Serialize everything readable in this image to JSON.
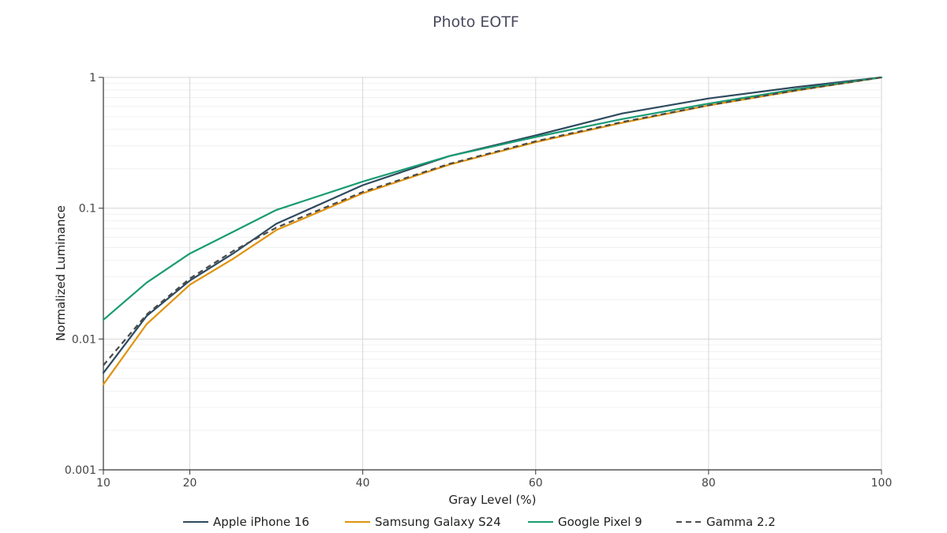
{
  "chart_data": {
    "type": "line",
    "title": "Photo EOTF",
    "xlabel": "Gray Level (%)",
    "ylabel": "Normalized Luminance",
    "xlim": [
      10,
      100
    ],
    "ylim": [
      0.001,
      1
    ],
    "yscale": "log",
    "grid": true,
    "legend_position": "bottom",
    "x_ticks": [
      10,
      20,
      40,
      60,
      80,
      100
    ],
    "y_ticks": [
      {
        "value": 0.001,
        "label": "0.001"
      },
      {
        "value": 0.01,
        "label": "0.01"
      },
      {
        "value": 0.1,
        "label": "0.1"
      },
      {
        "value": 1,
        "label": "1"
      }
    ],
    "series": [
      {
        "name": "Apple iPhone 16",
        "color": "#2e4a5f",
        "dash": "solid",
        "x": [
          10,
          15,
          20,
          25,
          30,
          40,
          50,
          60,
          70,
          80,
          90,
          100
        ],
        "y": [
          0.0055,
          0.015,
          0.028,
          0.045,
          0.076,
          0.15,
          0.25,
          0.36,
          0.53,
          0.69,
          0.84,
          1.0
        ]
      },
      {
        "name": "Samsung Galaxy S24",
        "color": "#e0930f",
        "dash": "solid",
        "x": [
          10,
          15,
          20,
          25,
          30,
          40,
          50,
          60,
          70,
          80,
          90,
          100
        ],
        "y": [
          0.0045,
          0.013,
          0.026,
          0.041,
          0.068,
          0.13,
          0.215,
          0.32,
          0.45,
          0.61,
          0.79,
          1.0
        ]
      },
      {
        "name": "Google Pixel 9",
        "color": "#1a9b73",
        "dash": "solid",
        "x": [
          10,
          15,
          20,
          25,
          30,
          40,
          50,
          60,
          70,
          80,
          90,
          100
        ],
        "y": [
          0.014,
          0.027,
          0.045,
          0.066,
          0.097,
          0.16,
          0.25,
          0.35,
          0.48,
          0.63,
          0.81,
          1.0
        ]
      },
      {
        "name": "Gamma 2.2",
        "color": "#4a4a4a",
        "dash": "dashed",
        "x": [
          10,
          15,
          20,
          25,
          30,
          40,
          50,
          60,
          70,
          80,
          90,
          100
        ],
        "y": [
          0.0063,
          0.0154,
          0.029,
          0.047,
          0.071,
          0.133,
          0.218,
          0.325,
          0.456,
          0.612,
          0.793,
          1.0
        ]
      }
    ]
  }
}
